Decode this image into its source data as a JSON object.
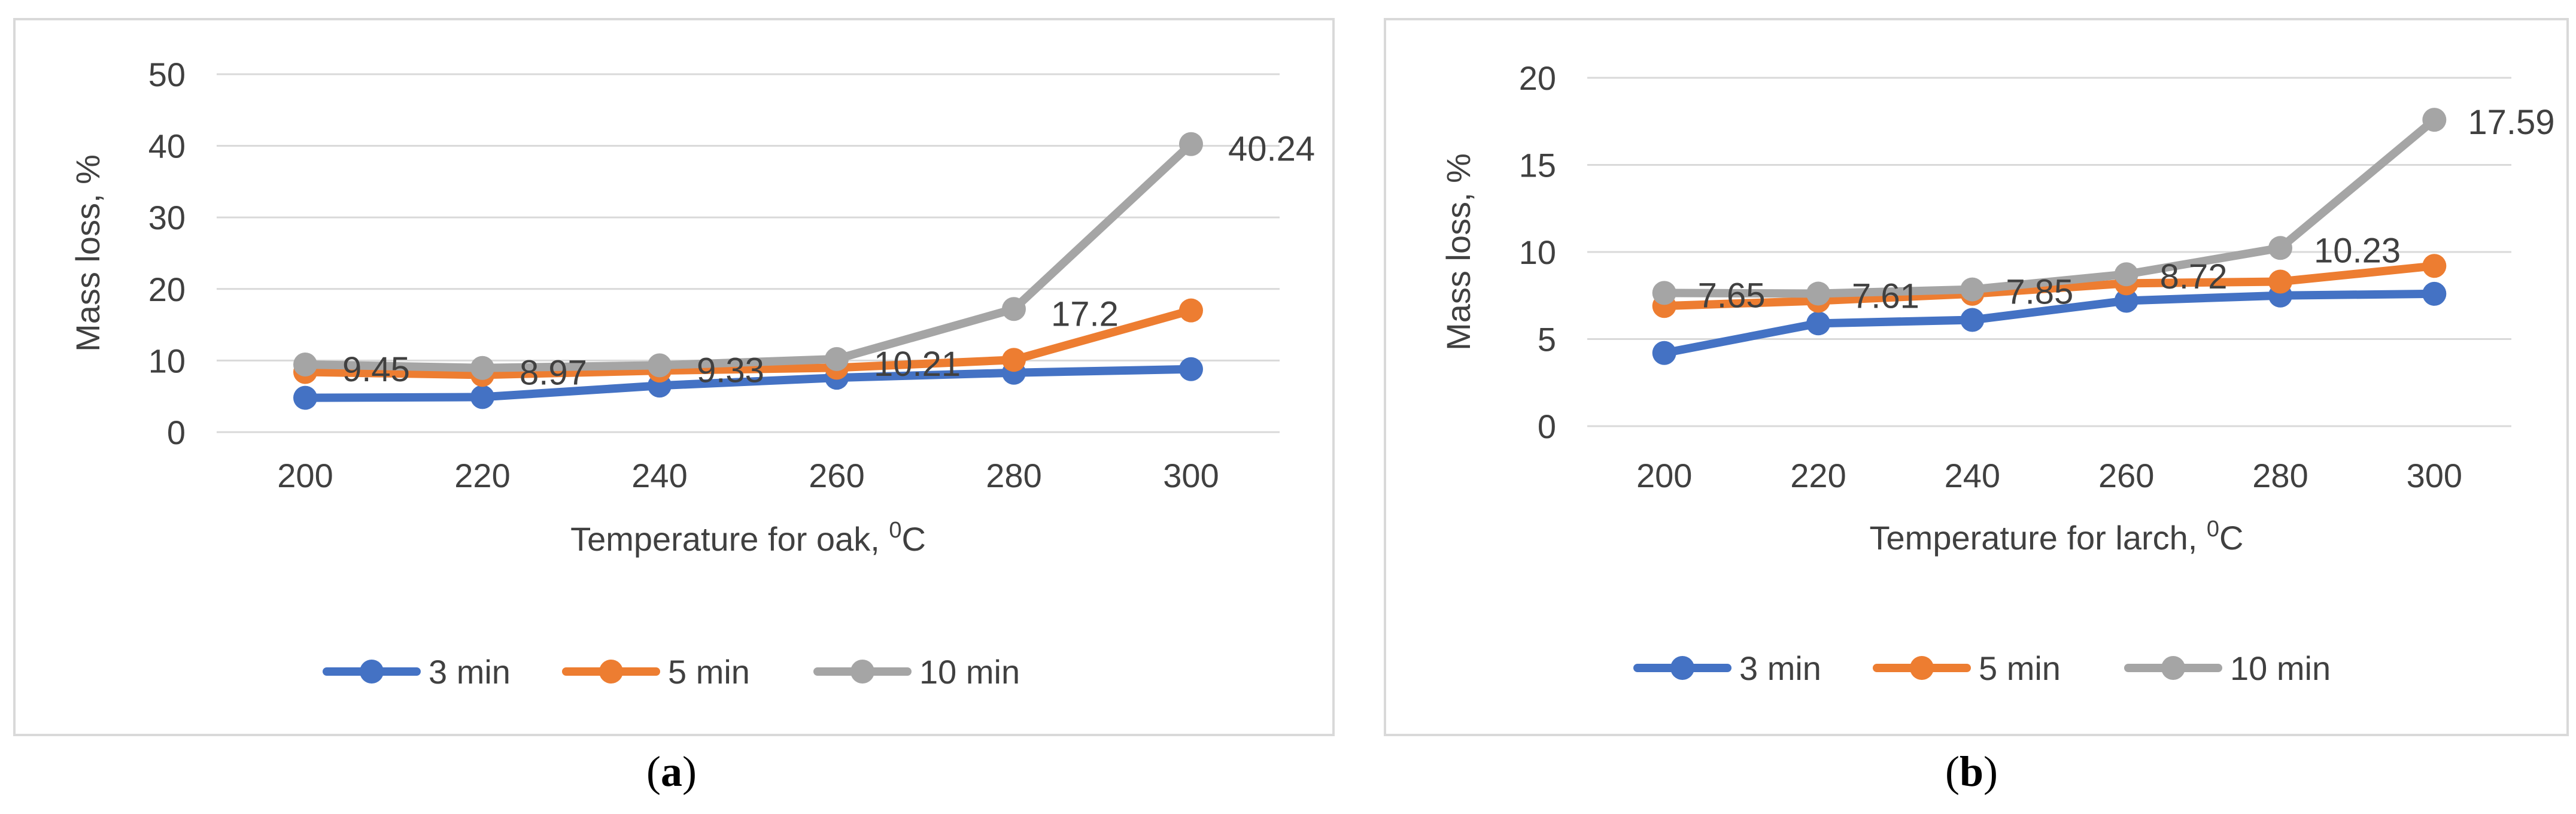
{
  "chart_data": [
    {
      "type": "line",
      "panel_label": "a",
      "xlabel": "Temperature for oak, ",
      "xlabel_sup": "0",
      "xlabel_unit": "C",
      "ylabel": "Mass loss, %",
      "categories": [
        "200",
        "220",
        "240",
        "260",
        "280",
        "300"
      ],
      "ylim": [
        0,
        50
      ],
      "yticks": [
        0,
        10,
        20,
        30,
        40,
        50
      ],
      "grid": true,
      "legend": "bottom",
      "series": [
        {
          "name": "3 min",
          "color": "#4472C4",
          "values": [
            4.8,
            4.9,
            6.5,
            7.6,
            8.3,
            8.8
          ]
        },
        {
          "name": "5 min",
          "color": "#ED7D31",
          "values": [
            8.4,
            8.0,
            8.6,
            9.0,
            10.1,
            17.0
          ]
        },
        {
          "name": "10 min",
          "color": "#A5A5A5",
          "values": [
            9.45,
            8.97,
            9.33,
            10.21,
            17.2,
            40.24
          ]
        }
      ],
      "data_labels": [
        "9.45",
        "8.97",
        "9.33",
        "10.21",
        "17.2",
        "40.24"
      ]
    },
    {
      "type": "line",
      "panel_label": "b",
      "xlabel": "Temperature for larch, ",
      "xlabel_sup": "0",
      "xlabel_unit": "C",
      "ylabel": "Mass loss, %",
      "categories": [
        "200",
        "220",
        "240",
        "260",
        "280",
        "300"
      ],
      "ylim": [
        0,
        20
      ],
      "yticks": [
        0,
        5,
        10,
        15,
        20
      ],
      "grid": true,
      "legend": "bottom",
      "series": [
        {
          "name": "3 min",
          "color": "#4472C4",
          "values": [
            4.2,
            5.9,
            6.1,
            7.2,
            7.5,
            7.6
          ]
        },
        {
          "name": "5 min",
          "color": "#ED7D31",
          "values": [
            6.9,
            7.2,
            7.6,
            8.2,
            8.3,
            9.2
          ]
        },
        {
          "name": "10 min",
          "color": "#A5A5A5",
          "values": [
            7.65,
            7.61,
            7.85,
            8.72,
            10.23,
            17.59
          ]
        }
      ],
      "data_labels": [
        "7.65",
        "7.61",
        "7.85",
        "8.72",
        "10.23",
        "17.59"
      ]
    }
  ],
  "captions": [
    {
      "open": "(",
      "label": "a",
      "close": ")"
    },
    {
      "open": "(",
      "label": "b",
      "close": ")"
    }
  ]
}
